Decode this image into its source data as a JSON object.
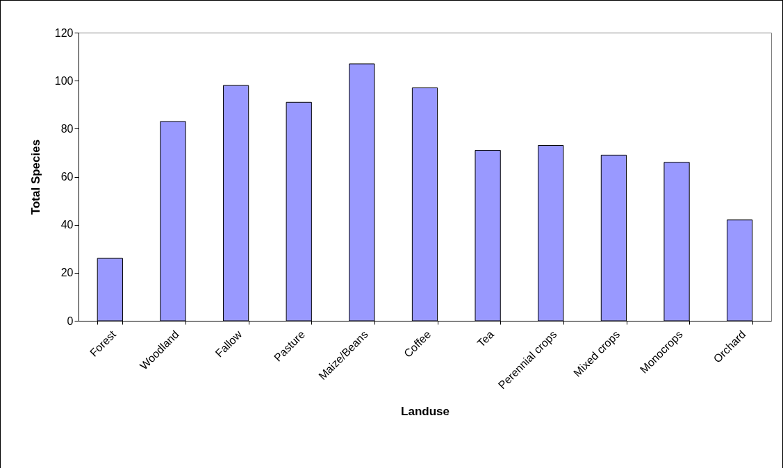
{
  "chart_data": {
    "type": "bar",
    "xlabel": "Landuse",
    "ylabel": "Total Species",
    "categories": [
      "Forest",
      "Woodland",
      "Fallow",
      "Pasture",
      "Maize/Beans",
      "Coffee",
      "Tea",
      "Perennial crops",
      "Mixed crops",
      "Monocrops",
      "Orchard"
    ],
    "values": [
      26,
      83,
      98,
      91,
      107,
      97,
      71,
      73,
      69,
      66,
      42
    ],
    "color": "#9999ff",
    "ylim": [
      0,
      120
    ],
    "yticks": [
      0,
      20,
      40,
      60,
      80,
      100,
      120
    ],
    "grid": false,
    "legend": false
  }
}
